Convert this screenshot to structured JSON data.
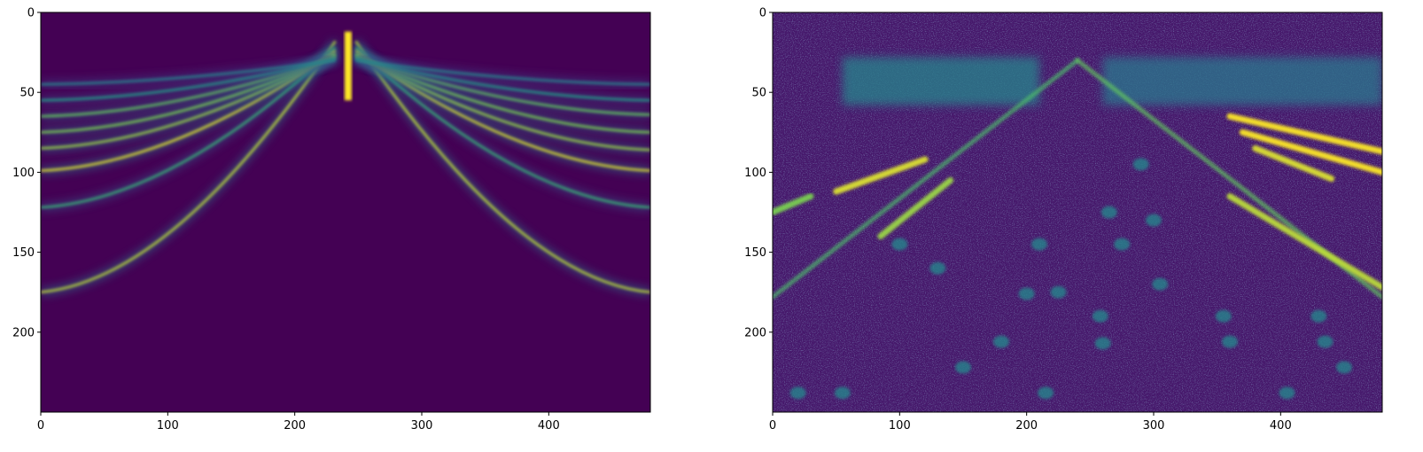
{
  "figure": {
    "panel_count": 2
  },
  "chart_data": [
    {
      "type": "heatmap",
      "title": "",
      "xlabel": "",
      "ylabel": "",
      "xlim": [
        0,
        480
      ],
      "ylim": [
        250,
        0
      ],
      "x_ticks": [
        0,
        100,
        200,
        300,
        400
      ],
      "y_ticks": [
        0,
        50,
        100,
        150,
        200
      ],
      "colormap": "viridis",
      "background_value": 0,
      "features": [
        {
          "kind": "cone-arc",
          "apex_x": 240,
          "apex_y": 18,
          "left_end": [
            0,
            175
          ],
          "right_end": [
            480,
            175
          ],
          "intensity": 0.9
        },
        {
          "kind": "cone-arc",
          "apex_x": 240,
          "apex_y": 22,
          "left_end": [
            0,
            122
          ],
          "right_end": [
            480,
            122
          ],
          "intensity": 0.65
        },
        {
          "kind": "cone-arc",
          "apex_x": 240,
          "apex_y": 24,
          "left_end": [
            0,
            99
          ],
          "right_end": [
            480,
            99
          ],
          "intensity": 0.95
        },
        {
          "kind": "cone-arc",
          "apex_x": 240,
          "apex_y": 26,
          "left_end": [
            0,
            85
          ],
          "right_end": [
            480,
            86
          ],
          "intensity": 0.85
        },
        {
          "kind": "cone-arc",
          "apex_x": 240,
          "apex_y": 27,
          "left_end": [
            0,
            75
          ],
          "right_end": [
            480,
            75
          ],
          "intensity": 0.8
        },
        {
          "kind": "cone-arc",
          "apex_x": 240,
          "apex_y": 28,
          "left_end": [
            0,
            65
          ],
          "right_end": [
            480,
            64
          ],
          "intensity": 0.75
        },
        {
          "kind": "cone-arc",
          "apex_x": 240,
          "apex_y": 29,
          "left_end": [
            0,
            55
          ],
          "right_end": [
            480,
            55
          ],
          "intensity": 0.55
        },
        {
          "kind": "cone-arc",
          "apex_x": 240,
          "apex_y": 30,
          "left_end": [
            0,
            45
          ],
          "right_end": [
            480,
            45
          ],
          "intensity": 0.45
        },
        {
          "kind": "vertical-streak",
          "x": 242,
          "y_range": [
            12,
            55
          ],
          "intensity": 1.0
        }
      ]
    },
    {
      "type": "heatmap",
      "title": "",
      "xlabel": "",
      "ylabel": "",
      "xlim": [
        0,
        480
      ],
      "ylim": [
        250,
        0
      ],
      "x_ticks": [
        0,
        100,
        200,
        300,
        400
      ],
      "y_ticks": [
        0,
        50,
        100,
        150,
        200
      ],
      "colormap": "viridis",
      "background_value": 0.12,
      "features": [
        {
          "kind": "band",
          "x_range": [
            55,
            210
          ],
          "y_range": [
            28,
            58
          ],
          "intensity": 0.45
        },
        {
          "kind": "band",
          "x_range": [
            260,
            480
          ],
          "y_range": [
            28,
            58
          ],
          "intensity": 0.4
        },
        {
          "kind": "cone-edge",
          "from": [
            240,
            30
          ],
          "to": [
            0,
            178
          ],
          "intensity": 0.7
        },
        {
          "kind": "cone-edge",
          "from": [
            240,
            30
          ],
          "to": [
            480,
            178
          ],
          "intensity": 0.75
        },
        {
          "kind": "bright-stroke",
          "from": [
            360,
            65
          ],
          "to": [
            480,
            87
          ],
          "intensity": 1.0
        },
        {
          "kind": "bright-stroke",
          "from": [
            370,
            75
          ],
          "to": [
            480,
            100
          ],
          "intensity": 1.0
        },
        {
          "kind": "bright-stroke",
          "from": [
            380,
            85
          ],
          "to": [
            440,
            104
          ],
          "intensity": 0.95
        },
        {
          "kind": "bright-stroke",
          "from": [
            360,
            115
          ],
          "to": [
            480,
            172
          ],
          "intensity": 0.9
        },
        {
          "kind": "bright-stroke",
          "from": [
            50,
            112
          ],
          "to": [
            120,
            92
          ],
          "intensity": 0.95
        },
        {
          "kind": "bright-stroke",
          "from": [
            85,
            140
          ],
          "to": [
            140,
            105
          ],
          "intensity": 0.85
        },
        {
          "kind": "bright-stroke",
          "from": [
            0,
            125
          ],
          "to": [
            30,
            115
          ],
          "intensity": 0.8
        },
        {
          "kind": "blob-grid",
          "points": [
            [
              20,
              238
            ],
            [
              55,
              238
            ],
            [
              100,
              145
            ],
            [
              130,
              160
            ],
            [
              150,
              222
            ],
            [
              180,
              206
            ],
            [
              200,
              176
            ],
            [
              210,
              145
            ],
            [
              215,
              238
            ],
            [
              225,
              175
            ],
            [
              258,
              190
            ],
            [
              260,
              207
            ],
            [
              265,
              125
            ],
            [
              275,
              145
            ],
            [
              300,
              130
            ],
            [
              305,
              170
            ],
            [
              355,
              190
            ],
            [
              360,
              206
            ],
            [
              405,
              238
            ],
            [
              430,
              190
            ],
            [
              435,
              206
            ],
            [
              450,
              222
            ],
            [
              290,
              95
            ]
          ],
          "intensity": 0.45
        }
      ]
    }
  ]
}
